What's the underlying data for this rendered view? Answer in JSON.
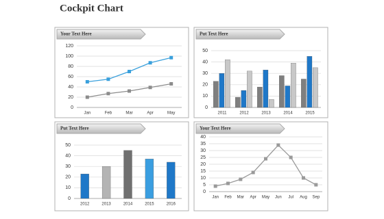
{
  "title": "Cockpit Chart",
  "chart_data": [
    {
      "type": "line",
      "title": "Your Text Here",
      "categories": [
        "Jan",
        "Feb",
        "Mar",
        "Apr",
        "May"
      ],
      "series": [
        {
          "color": "#3aa0dc",
          "values": [
            50,
            55,
            70,
            87,
            97
          ]
        },
        {
          "color": "#8c8c8c",
          "values": [
            20,
            27,
            32,
            39,
            46
          ]
        }
      ],
      "ylim": [
        0,
        120
      ],
      "yticks": [
        0,
        20,
        40,
        60,
        80,
        100,
        120
      ],
      "grid": true
    },
    {
      "type": "bar",
      "title": "Put Text Here",
      "categories": [
        "2011",
        "2012",
        "2013",
        "2014",
        "2015"
      ],
      "series": [
        {
          "color": "#7f7f7f",
          "values": [
            23,
            9,
            18,
            28,
            25
          ]
        },
        {
          "color": "#1f78c8",
          "values": [
            30,
            15,
            33,
            19,
            45
          ]
        },
        {
          "color": "#c8c8c8",
          "values": [
            42,
            32,
            7,
            39,
            35
          ]
        }
      ],
      "ylim": [
        0,
        50
      ],
      "yticks": [
        0,
        10,
        20,
        30,
        40,
        50
      ],
      "grid": true
    },
    {
      "type": "bar",
      "title": "Put Text Here",
      "categories": [
        "2012",
        "2013",
        "2014",
        "2015",
        "2016"
      ],
      "values": [
        23,
        30,
        45,
        37,
        34
      ],
      "colors": [
        "#1f78c8",
        "#b4b4b4",
        "#707070",
        "#3a9ee0",
        "#1f78c8"
      ],
      "ylim": [
        0,
        50
      ],
      "yticks": [
        0,
        10,
        20,
        30,
        40,
        50
      ],
      "grid": true
    },
    {
      "type": "line",
      "title": "Your Text Here",
      "categories": [
        "Jan",
        "Feb",
        "Mar",
        "Apr",
        "May",
        "Jun",
        "Jul",
        "Aug",
        "Sep"
      ],
      "series": [
        {
          "color": "#9a9a9a",
          "values": [
            4,
            6,
            9,
            14,
            24,
            34,
            25,
            10,
            5
          ]
        }
      ],
      "ylim": [
        0,
        40
      ],
      "yticks": [
        0,
        5,
        10,
        15,
        20,
        25,
        30,
        35,
        40
      ],
      "grid": true
    }
  ]
}
